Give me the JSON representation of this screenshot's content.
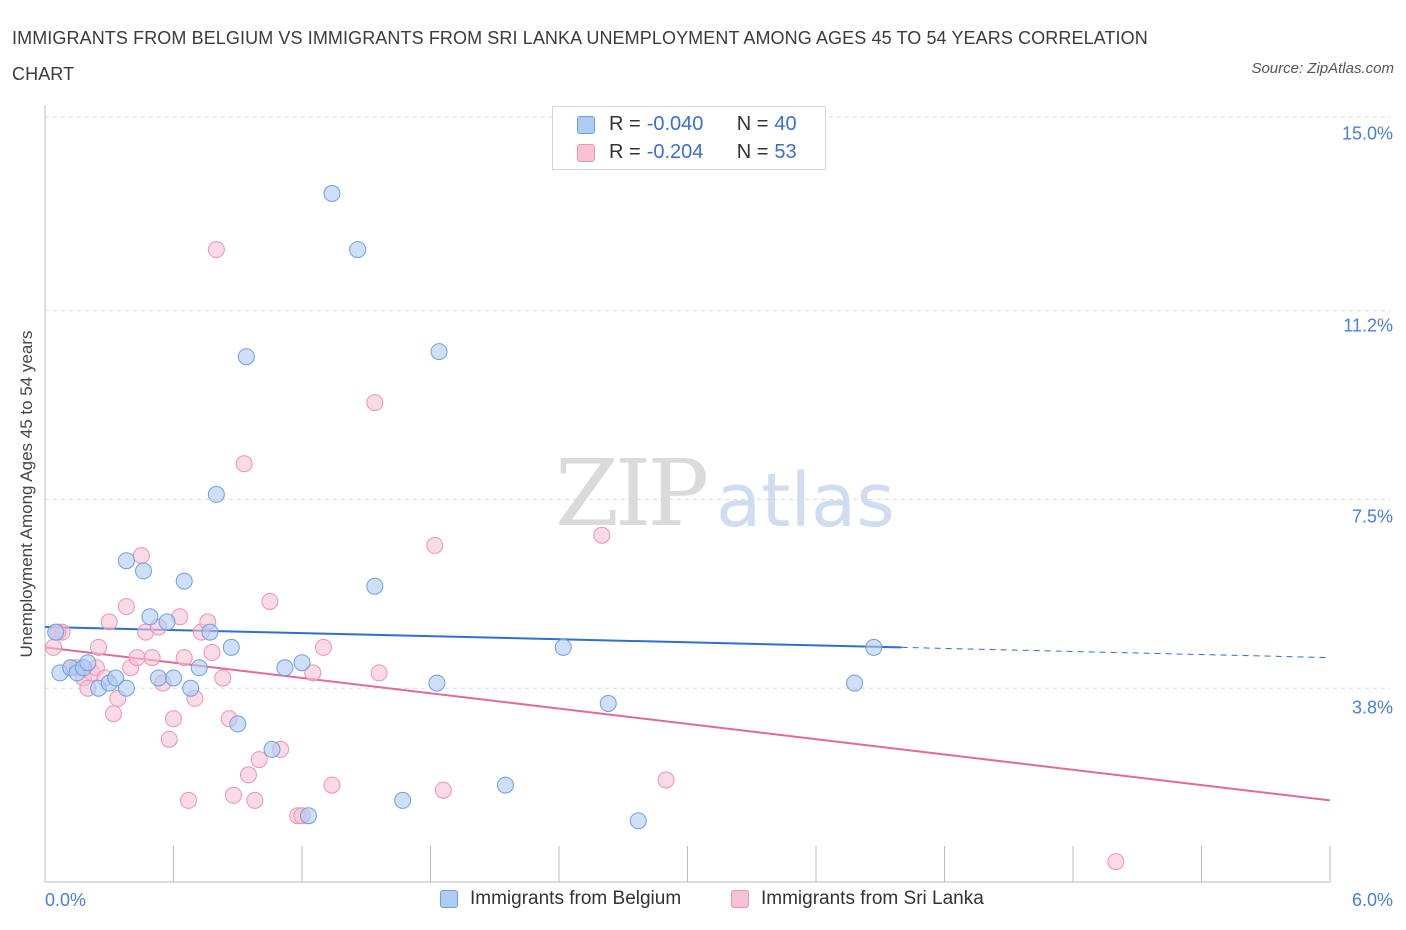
{
  "title": "IMMIGRANTS FROM BELGIUM VS IMMIGRANTS FROM SRI LANKA UNEMPLOYMENT AMONG AGES 45 TO 54 YEARS CORRELATION CHART",
  "source": "Source: ZipAtlas.com",
  "watermark": {
    "zip": "ZIP",
    "atlas": "atlas"
  },
  "legend": {
    "series1": {
      "r_label": "R = ",
      "r_value": "-0.040",
      "n_label": "N = ",
      "n_value": "40"
    },
    "series2": {
      "r_label": "R = ",
      "r_value": "-0.204",
      "n_label": "N = ",
      "n_value": "53"
    }
  },
  "colors": {
    "belgium_fill": "#aecbf2",
    "belgium_stroke": "#6f9ee0",
    "belgium_line": "#2e6fd0",
    "srilanka_fill": "#f7c2d3",
    "srilanka_stroke": "#ec93b1",
    "srilanka_line": "#e06b98",
    "axis_text": "#4a7fd4"
  },
  "chart_data": {
    "type": "scatter",
    "title": "IMMIGRANTS FROM BELGIUM VS IMMIGRANTS FROM SRI LANKA UNEMPLOYMENT AMONG AGES 45 TO 54 YEARS CORRELATION CHART",
    "xlabel": "",
    "ylabel": "Unemployment Among Ages 45 to 54 years",
    "xlim": [
      0,
      6
    ],
    "ylim": [
      0,
      15
    ],
    "x_tick_labels": [
      "0.0%",
      "6.0%"
    ],
    "y_tick_labels": [
      "15.0%",
      "11.2%",
      "7.5%",
      "3.8%"
    ],
    "y_tick_values": [
      15.0,
      11.2,
      7.5,
      3.8
    ],
    "grid": true,
    "series": [
      {
        "name": "Immigrants from Belgium",
        "r": -0.04,
        "n": 40,
        "trend": {
          "x0": 0.0,
          "y0": 5.0,
          "x1": 4.0,
          "y1": 4.6,
          "dashed_to_x": 6.0,
          "dashed_to_y": 4.4
        },
        "points": [
          {
            "x": 0.05,
            "y": 4.9
          },
          {
            "x": 0.07,
            "y": 4.1
          },
          {
            "x": 0.12,
            "y": 4.2
          },
          {
            "x": 0.15,
            "y": 4.1
          },
          {
            "x": 0.18,
            "y": 4.2
          },
          {
            "x": 0.2,
            "y": 4.3
          },
          {
            "x": 0.25,
            "y": 3.8
          },
          {
            "x": 0.3,
            "y": 3.9
          },
          {
            "x": 0.33,
            "y": 4.0
          },
          {
            "x": 0.38,
            "y": 3.8
          },
          {
            "x": 0.38,
            "y": 6.3
          },
          {
            "x": 0.46,
            "y": 6.1
          },
          {
            "x": 0.49,
            "y": 5.2
          },
          {
            "x": 0.53,
            "y": 4.0
          },
          {
            "x": 0.57,
            "y": 5.1
          },
          {
            "x": 0.6,
            "y": 4.0
          },
          {
            "x": 0.65,
            "y": 5.9
          },
          {
            "x": 0.68,
            "y": 3.8
          },
          {
            "x": 0.72,
            "y": 4.2
          },
          {
            "x": 0.77,
            "y": 4.9
          },
          {
            "x": 0.8,
            "y": 7.6
          },
          {
            "x": 0.87,
            "y": 4.6
          },
          {
            "x": 0.9,
            "y": 3.1
          },
          {
            "x": 0.94,
            "y": 10.3
          },
          {
            "x": 1.06,
            "y": 2.6
          },
          {
            "x": 1.12,
            "y": 4.2
          },
          {
            "x": 1.2,
            "y": 4.3
          },
          {
            "x": 1.23,
            "y": 1.3
          },
          {
            "x": 1.34,
            "y": 13.5
          },
          {
            "x": 1.46,
            "y": 12.4
          },
          {
            "x": 1.54,
            "y": 5.8
          },
          {
            "x": 1.67,
            "y": 1.6
          },
          {
            "x": 1.83,
            "y": 3.9
          },
          {
            "x": 1.84,
            "y": 10.4
          },
          {
            "x": 2.15,
            "y": 1.9
          },
          {
            "x": 2.42,
            "y": 4.6
          },
          {
            "x": 2.63,
            "y": 3.5
          },
          {
            "x": 2.77,
            "y": 1.2
          },
          {
            "x": 3.78,
            "y": 3.9
          },
          {
            "x": 3.87,
            "y": 4.6
          }
        ]
      },
      {
        "name": "Immigrants from Sri Lanka",
        "r": -0.204,
        "n": 53,
        "trend": {
          "x0": 0.0,
          "y0": 4.6,
          "x1": 6.0,
          "y1": 1.6
        },
        "points": [
          {
            "x": 0.04,
            "y": 4.6
          },
          {
            "x": 0.08,
            "y": 4.9
          },
          {
            "x": 0.12,
            "y": 4.2
          },
          {
            "x": 0.15,
            "y": 4.2
          },
          {
            "x": 0.18,
            "y": 4.0
          },
          {
            "x": 0.2,
            "y": 3.8
          },
          {
            "x": 0.22,
            "y": 4.1
          },
          {
            "x": 0.24,
            "y": 4.2
          },
          {
            "x": 0.25,
            "y": 4.6
          },
          {
            "x": 0.28,
            "y": 4.0
          },
          {
            "x": 0.3,
            "y": 5.1
          },
          {
            "x": 0.32,
            "y": 3.3
          },
          {
            "x": 0.34,
            "y": 3.6
          },
          {
            "x": 0.38,
            "y": 5.4
          },
          {
            "x": 0.4,
            "y": 4.2
          },
          {
            "x": 0.43,
            "y": 4.4
          },
          {
            "x": 0.45,
            "y": 6.4
          },
          {
            "x": 0.47,
            "y": 4.9
          },
          {
            "x": 0.5,
            "y": 4.4
          },
          {
            "x": 0.53,
            "y": 5.0
          },
          {
            "x": 0.55,
            "y": 3.9
          },
          {
            "x": 0.58,
            "y": 2.8
          },
          {
            "x": 0.6,
            "y": 3.2
          },
          {
            "x": 0.63,
            "y": 5.2
          },
          {
            "x": 0.65,
            "y": 4.4
          },
          {
            "x": 0.67,
            "y": 1.6
          },
          {
            "x": 0.7,
            "y": 3.6
          },
          {
            "x": 0.73,
            "y": 4.9
          },
          {
            "x": 0.76,
            "y": 5.1
          },
          {
            "x": 0.78,
            "y": 4.5
          },
          {
            "x": 0.8,
            "y": 12.4
          },
          {
            "x": 0.83,
            "y": 4.0
          },
          {
            "x": 0.86,
            "y": 3.2
          },
          {
            "x": 0.88,
            "y": 1.7
          },
          {
            "x": 0.93,
            "y": 8.2
          },
          {
            "x": 0.95,
            "y": 2.1
          },
          {
            "x": 0.98,
            "y": 1.6
          },
          {
            "x": 1.0,
            "y": 2.4
          },
          {
            "x": 1.05,
            "y": 5.5
          },
          {
            "x": 1.1,
            "y": 2.6
          },
          {
            "x": 1.18,
            "y": 1.3
          },
          {
            "x": 1.2,
            "y": 1.3
          },
          {
            "x": 1.25,
            "y": 4.1
          },
          {
            "x": 1.3,
            "y": 4.6
          },
          {
            "x": 1.34,
            "y": 1.9
          },
          {
            "x": 1.54,
            "y": 9.4
          },
          {
            "x": 1.56,
            "y": 4.1
          },
          {
            "x": 1.82,
            "y": 6.6
          },
          {
            "x": 1.86,
            "y": 1.8
          },
          {
            "x": 2.6,
            "y": 6.8
          },
          {
            "x": 2.9,
            "y": 2.0
          },
          {
            "x": 5.0,
            "y": 0.4
          },
          {
            "x": 0.06,
            "y": 4.9
          }
        ]
      }
    ]
  }
}
